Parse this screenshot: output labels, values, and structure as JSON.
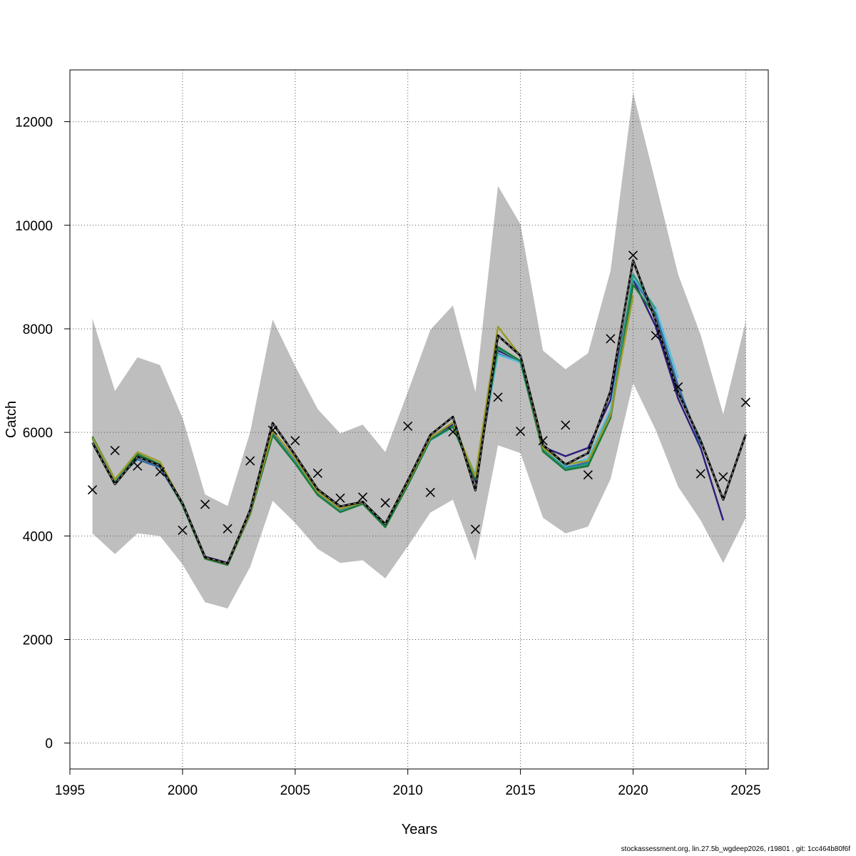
{
  "chart_data": {
    "type": "line",
    "xlabel": "Years",
    "ylabel": "Catch",
    "xlim": [
      1995,
      2026
    ],
    "ylim": [
      -500,
      13000
    ],
    "x_ticks": [
      1995,
      2000,
      2005,
      2010,
      2015,
      2020,
      2025
    ],
    "y_ticks": [
      0,
      2000,
      4000,
      6000,
      8000,
      10000,
      12000
    ],
    "grid": true,
    "colors": {
      "band": "#bebebe",
      "grid": "#555555",
      "observed": "#000000",
      "base": "#000000"
    },
    "confidence_band": {
      "x": [
        1996,
        1997,
        1998,
        1999,
        2000,
        2001,
        2002,
        2003,
        2004,
        2005,
        2006,
        2007,
        2008,
        2009,
        2010,
        2011,
        2012,
        2013,
        2014,
        2015,
        2016,
        2017,
        2018,
        2019,
        2020,
        2021,
        2022,
        2023,
        2024,
        2025
      ],
      "lower": [
        4050,
        3650,
        4050,
        4000,
        3450,
        2720,
        2600,
        3400,
        4680,
        4250,
        3750,
        3480,
        3530,
        3180,
        3800,
        4450,
        4700,
        3520,
        5750,
        5600,
        4350,
        4050,
        4180,
        5100,
        6950,
        6050,
        4950,
        4300,
        3480,
        4350
      ],
      "upper": [
        8200,
        6800,
        7450,
        7300,
        6280,
        4800,
        4580,
        6000,
        8180,
        7280,
        6450,
        5980,
        6150,
        5620,
        6780,
        7980,
        8450,
        6780,
        10760,
        10020,
        7580,
        7220,
        7530,
        9120,
        12560,
        10820,
        9050,
        7880,
        6350,
        8150
      ]
    },
    "observed": {
      "marker": "x",
      "x": [
        1996,
        1997,
        1998,
        1999,
        2000,
        2001,
        2002,
        2003,
        2004,
        2005,
        2006,
        2007,
        2008,
        2009,
        2010,
        2011,
        2012,
        2013,
        2014,
        2015,
        2016,
        2017,
        2018,
        2019,
        2020,
        2021,
        2022,
        2023,
        2024,
        2025
      ],
      "y": [
        4890,
        5650,
        5350,
        5240,
        4110,
        4610,
        4140,
        5450,
        6040,
        5840,
        5210,
        4730,
        4750,
        4640,
        6120,
        4840,
        6010,
        4130,
        6680,
        6020,
        5840,
        6140,
        5180,
        7810,
        9420,
        7870,
        6880,
        5200,
        5140,
        6580
      ]
    },
    "base_fit": {
      "x": [
        1996,
        1997,
        1998,
        1999,
        2000,
        2001,
        2002,
        2003,
        2004,
        2005,
        2006,
        2007,
        2008,
        2009,
        2010,
        2011,
        2012,
        2013,
        2014,
        2015,
        2016,
        2017,
        2018,
        2019,
        2020,
        2021,
        2022,
        2023,
        2024,
        2025
      ],
      "y": [
        5800,
        5000,
        5530,
        5360,
        4630,
        3590,
        3470,
        4500,
        6180,
        5560,
        4900,
        4570,
        4660,
        4230,
        5070,
        5950,
        6300,
        4880,
        7870,
        7480,
        5760,
        5380,
        5600,
        6800,
        9320,
        8160,
        6770,
        5840,
        4700,
        5960
      ]
    },
    "series": [
      {
        "color": "#2e1e7a",
        "x": [
          2000,
          2001,
          2002,
          2003,
          2004,
          2005,
          2006,
          2007,
          2008,
          2009,
          2010,
          2011,
          2012,
          2013,
          2014,
          2015,
          2016,
          2017,
          2018,
          2019,
          2020,
          2021,
          2022,
          2023,
          2024
        ],
        "y": [
          4620,
          3600,
          3480,
          4460,
          5980,
          5430,
          4820,
          4500,
          4640,
          4200,
          5020,
          5900,
          6150,
          5050,
          7580,
          7380,
          5720,
          5540,
          5700,
          6630,
          8950,
          8050,
          6650,
          5700,
          4300
        ]
      },
      {
        "color": "#2f6ea6",
        "x": [
          1996,
          1997,
          1998,
          1999,
          2000,
          2001,
          2002,
          2003,
          2004,
          2005,
          2006,
          2007,
          2008,
          2009,
          2010,
          2011,
          2012,
          2013,
          2014,
          2015,
          2016,
          2017,
          2018,
          2019,
          2020,
          2021,
          2022,
          2023
        ],
        "y": [
          5880,
          5060,
          5480,
          5320,
          4600,
          3580,
          3450,
          4440,
          5970,
          5440,
          4820,
          4480,
          4630,
          4190,
          5000,
          5880,
          6120,
          5100,
          7520,
          7350,
          5680,
          5320,
          5420,
          6420,
          8980,
          8300,
          6900,
          5750
        ]
      },
      {
        "color": "#5bc0dc",
        "x": [
          1996,
          1997,
          1998,
          1999,
          2000,
          2001,
          2002,
          2003,
          2004,
          2005,
          2006,
          2007,
          2008,
          2009,
          2010,
          2011,
          2012,
          2013,
          2014,
          2015,
          2016,
          2017,
          2018,
          2019,
          2020,
          2021,
          2022
        ],
        "y": [
          5900,
          5080,
          5550,
          5380,
          4600,
          3570,
          3460,
          4430,
          5950,
          5420,
          4800,
          4470,
          4620,
          4180,
          4980,
          5840,
          6100,
          5200,
          7500,
          7350,
          5700,
          5350,
          5500,
          6450,
          9000,
          8400,
          7050
        ]
      },
      {
        "color": "#2a9a7a",
        "x": [
          1996,
          1997,
          1998,
          1999,
          2000,
          2001,
          2002,
          2003,
          2004,
          2005,
          2006,
          2007,
          2008,
          2009,
          2010,
          2011,
          2012,
          2013,
          2014,
          2015,
          2016,
          2017,
          2018,
          2019,
          2020,
          2021
        ],
        "y": [
          5900,
          5080,
          5570,
          5370,
          4590,
          3570,
          3450,
          4420,
          5950,
          5410,
          4800,
          4460,
          4620,
          4170,
          4980,
          5860,
          6110,
          5140,
          7620,
          7370,
          5650,
          5300,
          5380,
          6320,
          9050,
          8380
        ]
      },
      {
        "color": "#1a7a3a",
        "x": [
          1996,
          1997,
          1998,
          1999,
          2000,
          2001,
          2002,
          2003,
          2004,
          2005,
          2006,
          2007,
          2008,
          2009,
          2010,
          2011,
          2012,
          2013,
          2014,
          2015,
          2016,
          2017,
          2018,
          2019,
          2020,
          2021
        ],
        "y": [
          5920,
          5090,
          5580,
          5380,
          4590,
          3560,
          3440,
          4420,
          5940,
          5400,
          4790,
          4460,
          4620,
          4170,
          4980,
          5860,
          6110,
          5090,
          7650,
          7380,
          5630,
          5270,
          5350,
          6280,
          8850,
          8250
        ]
      },
      {
        "color": "#9a9a28",
        "x": [
          1996,
          1997,
          1998,
          1999,
          2000,
          2001,
          2002,
          2003,
          2004,
          2005,
          2006,
          2007,
          2008,
          2009,
          2010,
          2011,
          2012,
          2013,
          2014,
          2015,
          2016,
          2017,
          2018,
          2019,
          2020
        ],
        "y": [
          5900,
          5090,
          5620,
          5430,
          4620,
          3580,
          3460,
          4450,
          6030,
          5500,
          4850,
          4520,
          4650,
          4230,
          5030,
          5900,
          6190,
          5150,
          8040,
          7480,
          5700,
          5380,
          5450,
          6340,
          8650
        ]
      }
    ]
  },
  "footer_text": "stockassessment.org, lin.27.5b_wgdeep2026, r19801 , git: 1cc464b80f6f"
}
